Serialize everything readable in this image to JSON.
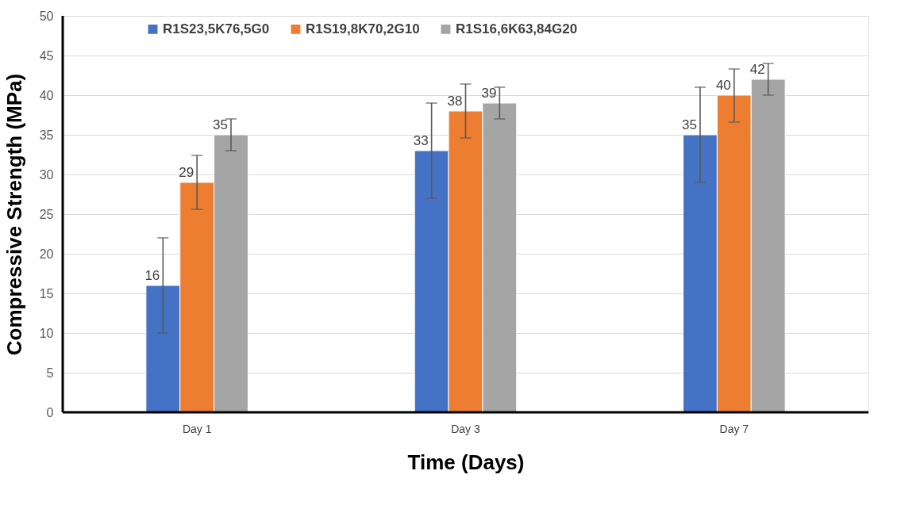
{
  "chart_data": {
    "type": "bar",
    "xlabel": "Time (Days)",
    "ylabel": "Compressive Strength (MPa)",
    "categories": [
      "Day 1",
      "Day 3",
      "Day 7"
    ],
    "series": [
      {
        "name": "R1S23,5K76,5G0",
        "color": "#4472c4",
        "values": [
          16,
          33,
          35
        ],
        "errors": [
          [
            10,
            22
          ],
          [
            27,
            39
          ],
          [
            29,
            41
          ]
        ]
      },
      {
        "name": "R1S19,8K70,2G10",
        "color": "#ed7d31",
        "values": [
          29,
          38,
          40
        ],
        "errors": [
          [
            25.6,
            32.4
          ],
          [
            34.6,
            41.4
          ],
          [
            36.6,
            43.3
          ]
        ]
      },
      {
        "name": "R1S16,6K63,84G20",
        "color": "#a5a5a5",
        "values": [
          35,
          39,
          42
        ],
        "errors": [
          [
            33,
            37
          ],
          [
            37,
            41
          ],
          [
            40,
            44
          ]
        ]
      }
    ],
    "ylim": [
      0,
      50
    ],
    "yticks": [
      0,
      5,
      10,
      15,
      20,
      25,
      30,
      35,
      40,
      45,
      50
    ],
    "grid": "y",
    "legend": "top",
    "data_labels": true
  }
}
